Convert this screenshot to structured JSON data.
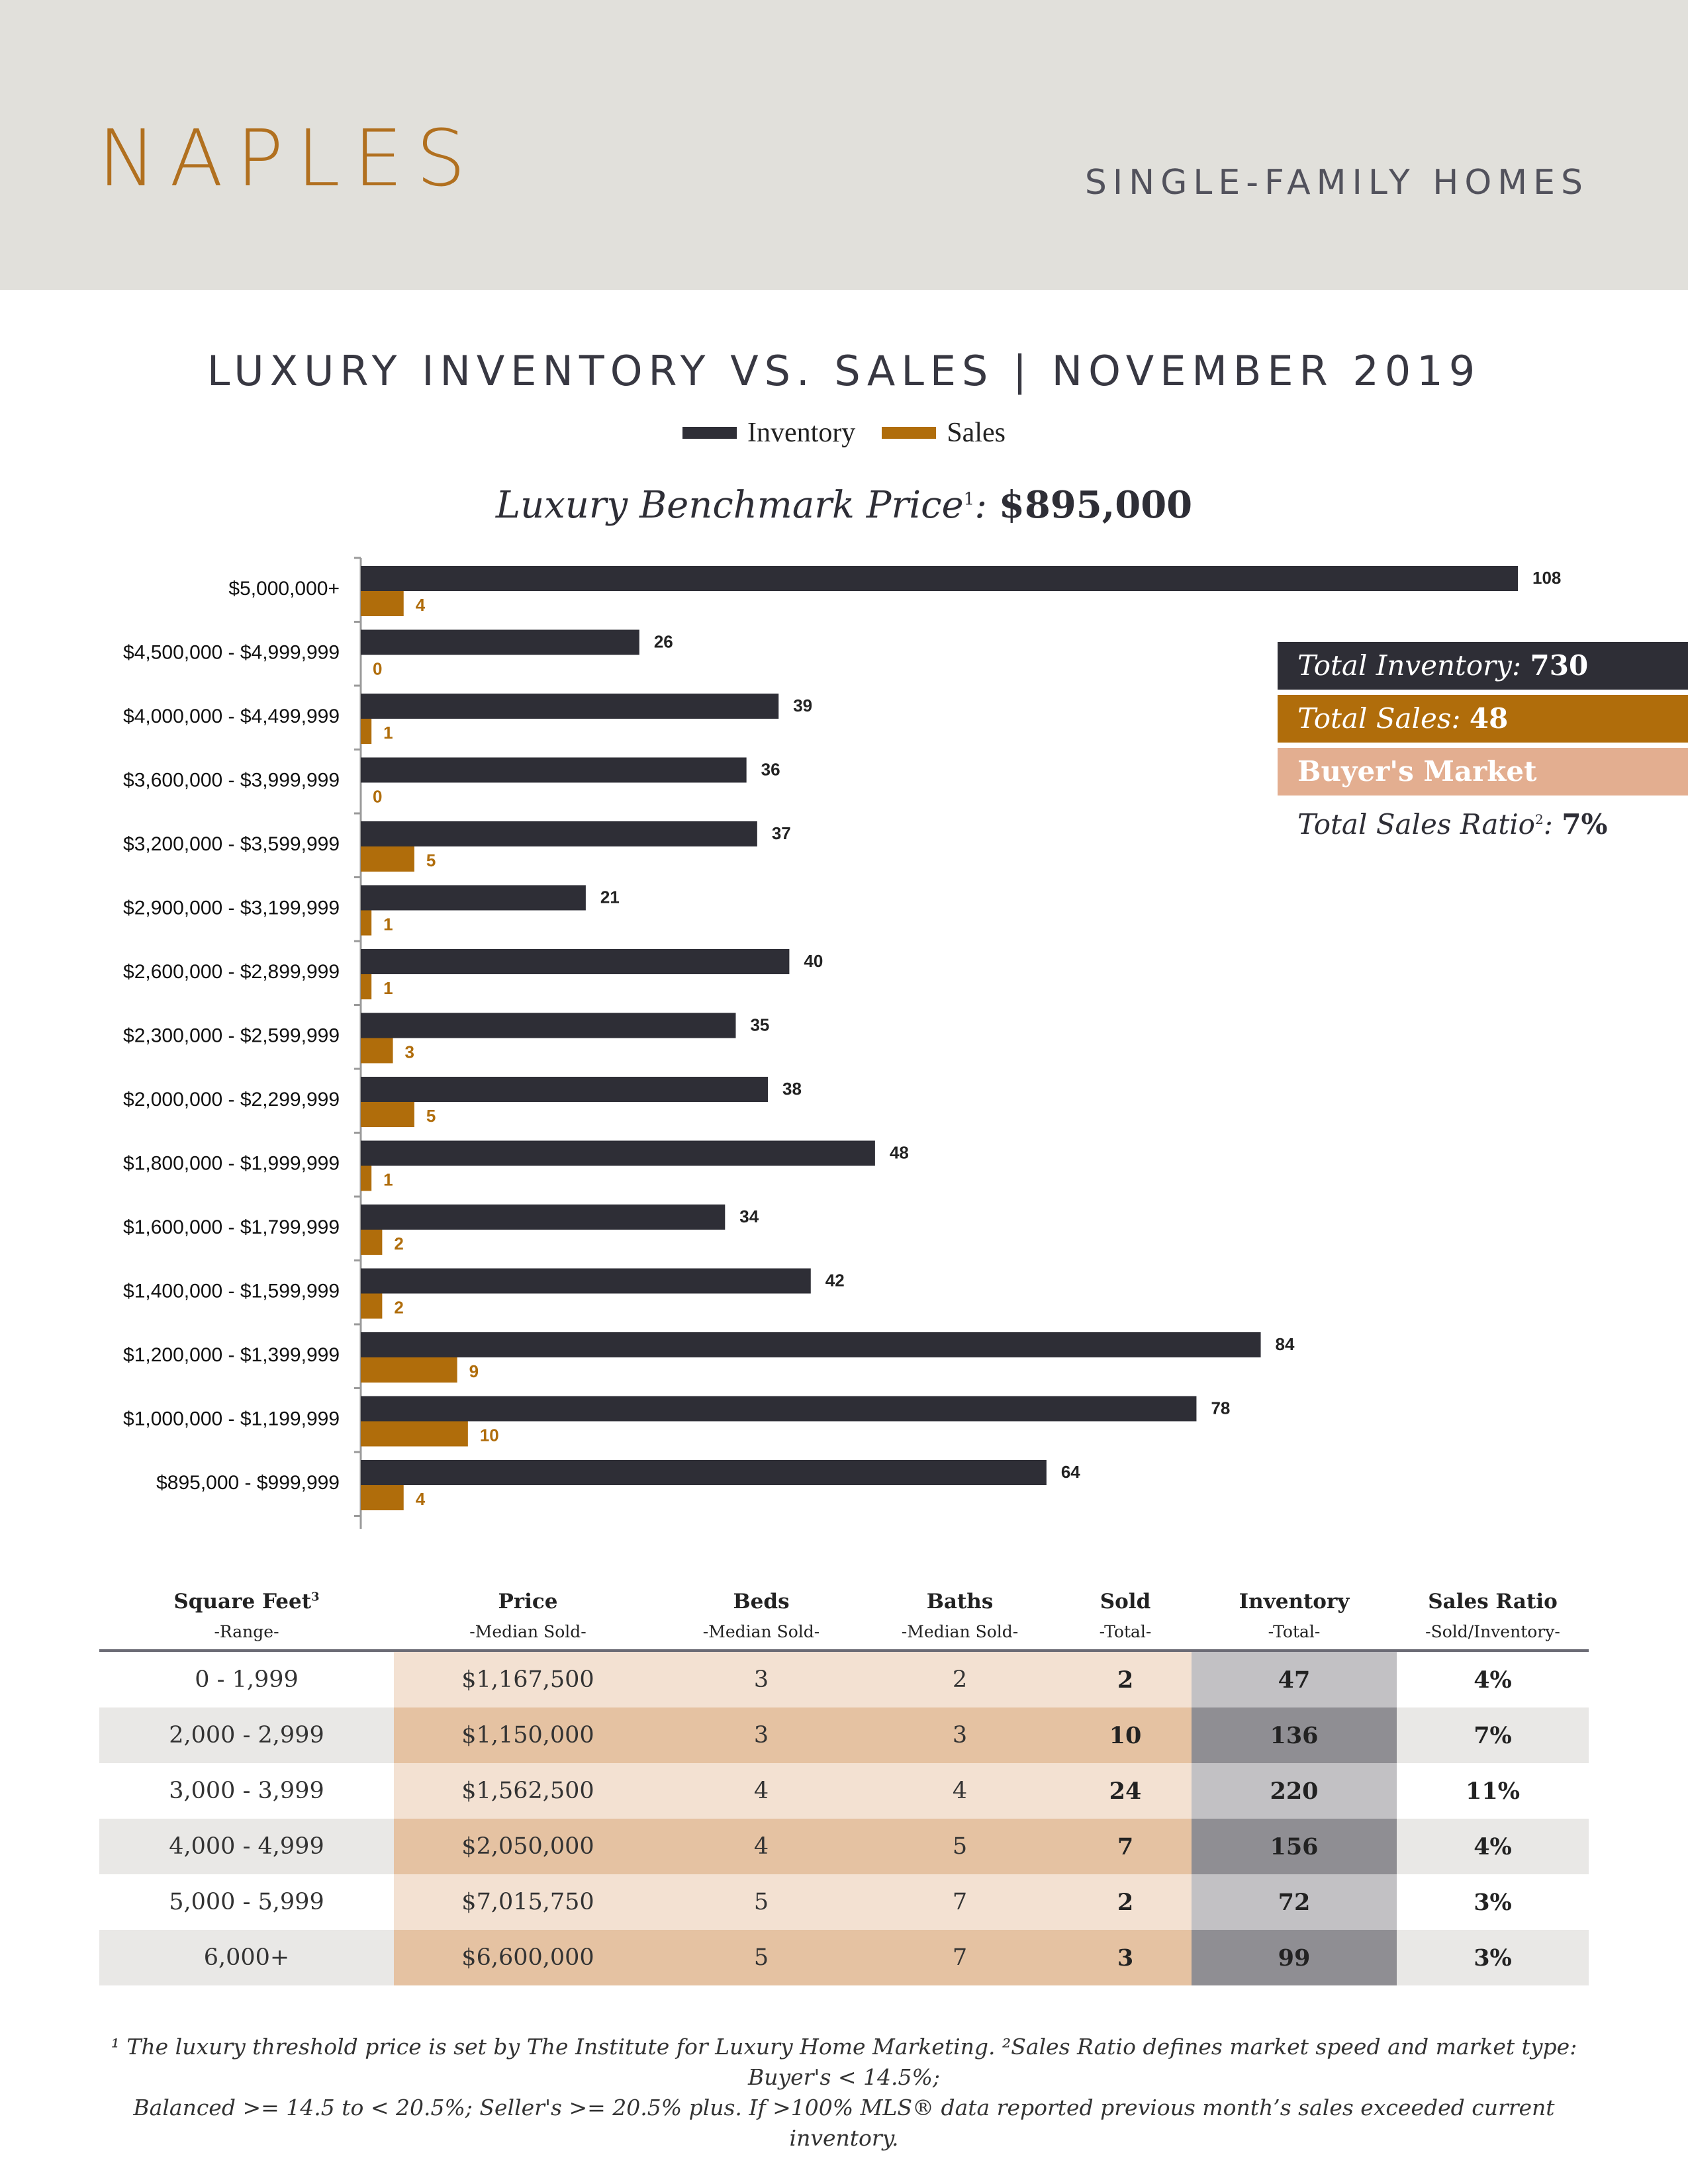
{
  "header": {
    "city": "NAPLES",
    "property_type": "SINGLE-FAMILY HOMES"
  },
  "chart_title": "LUXURY INVENTORY VS. SALES | NOVEMBER 2019",
  "benchmark": {
    "label": "Luxury Benchmark Price",
    "footnote_mark": "1",
    "separator": ":",
    "price": "$895,000"
  },
  "colors": {
    "inventory": "#2e2e36",
    "sales": "#b06d0b",
    "banner": "#e1e0db",
    "market_type": "#e3ae90",
    "table_price_light": "#f3e1d2",
    "table_price_dark": "#e5c2a2",
    "table_inventory_light": "#c2c1c4",
    "table_inventory_dark": "#8f8e93",
    "table_row_alt": "#e9e8e6"
  },
  "summary": {
    "total_inventory_label": "Total Inventory:",
    "total_inventory_value": "730",
    "total_sales_label": "Total Sales:",
    "total_sales_value": "48",
    "market_type": "Buyer's Market",
    "sales_ratio_label": "Total Sales Ratio",
    "sales_ratio_mark": "2",
    "sales_ratio_sep": ":",
    "sales_ratio_value": "7%"
  },
  "chart_data": {
    "type": "bar",
    "orientation": "horizontal",
    "title": "LUXURY INVENTORY VS. SALES | NOVEMBER 2019",
    "legend_position": "top-center",
    "xlim": [
      0,
      108
    ],
    "categories": [
      "$5,000,000+",
      "$4,500,000 - $4,999,999",
      "$4,000,000 - $4,499,999",
      "$3,600,000 - $3,999,999",
      "$3,200,000 - $3,599,999",
      "$2,900,000 - $3,199,999",
      "$2,600,000 - $2,899,999",
      "$2,300,000 - $2,599,999",
      "$2,000,000 - $2,299,999",
      "$1,800,000 - $1,999,999",
      "$1,600,000 - $1,799,999",
      "$1,400,000 - $1,599,999",
      "$1,200,000 - $1,399,999",
      "$1,000,000 - $1,199,999",
      "$895,000 - $999,999"
    ],
    "series": [
      {
        "name": "Inventory",
        "values": [
          108,
          26,
          39,
          36,
          37,
          21,
          40,
          35,
          38,
          48,
          34,
          42,
          84,
          78,
          64
        ]
      },
      {
        "name": "Sales",
        "values": [
          4,
          0,
          1,
          0,
          5,
          1,
          1,
          3,
          5,
          1,
          2,
          2,
          9,
          10,
          4
        ]
      }
    ]
  },
  "table": {
    "headers": [
      {
        "title": "Square Feet",
        "mark": "3",
        "sub": "-Range-"
      },
      {
        "title": "Price",
        "mark": "",
        "sub": "-Median Sold-"
      },
      {
        "title": "Beds",
        "mark": "",
        "sub": "-Median Sold-"
      },
      {
        "title": "Baths",
        "mark": "",
        "sub": "-Median Sold-"
      },
      {
        "title": "Sold",
        "mark": "",
        "sub": "-Total-"
      },
      {
        "title": "Inventory",
        "mark": "",
        "sub": "-Total-"
      },
      {
        "title": "Sales Ratio",
        "mark": "",
        "sub": "-Sold/Inventory-"
      }
    ],
    "rows": [
      [
        "0 - 1,999",
        "$1,167,500",
        "3",
        "2",
        "2",
        "47",
        "4%"
      ],
      [
        "2,000 - 2,999",
        "$1,150,000",
        "3",
        "3",
        "10",
        "136",
        "7%"
      ],
      [
        "3,000 - 3,999",
        "$1,562,500",
        "4",
        "4",
        "24",
        "220",
        "11%"
      ],
      [
        "4,000 - 4,999",
        "$2,050,000",
        "4",
        "5",
        "7",
        "156",
        "4%"
      ],
      [
        "5,000 - 5,999",
        "$7,015,750",
        "5",
        "7",
        "2",
        "72",
        "3%"
      ],
      [
        "6,000+",
        "$6,600,000",
        "5",
        "7",
        "3",
        "99",
        "3%"
      ]
    ]
  },
  "footnote": {
    "line1": "¹ The luxury threshold price is set by The Institute for Luxury Home Marketing. ²Sales Ratio defines market speed and market type: Buyer's < 14.5%;",
    "line2": "Balanced >= 14.5 to < 20.5%; Seller's >= 20.5% plus. If >100% MLS® data reported previous month’s sales exceeded current inventory."
  }
}
